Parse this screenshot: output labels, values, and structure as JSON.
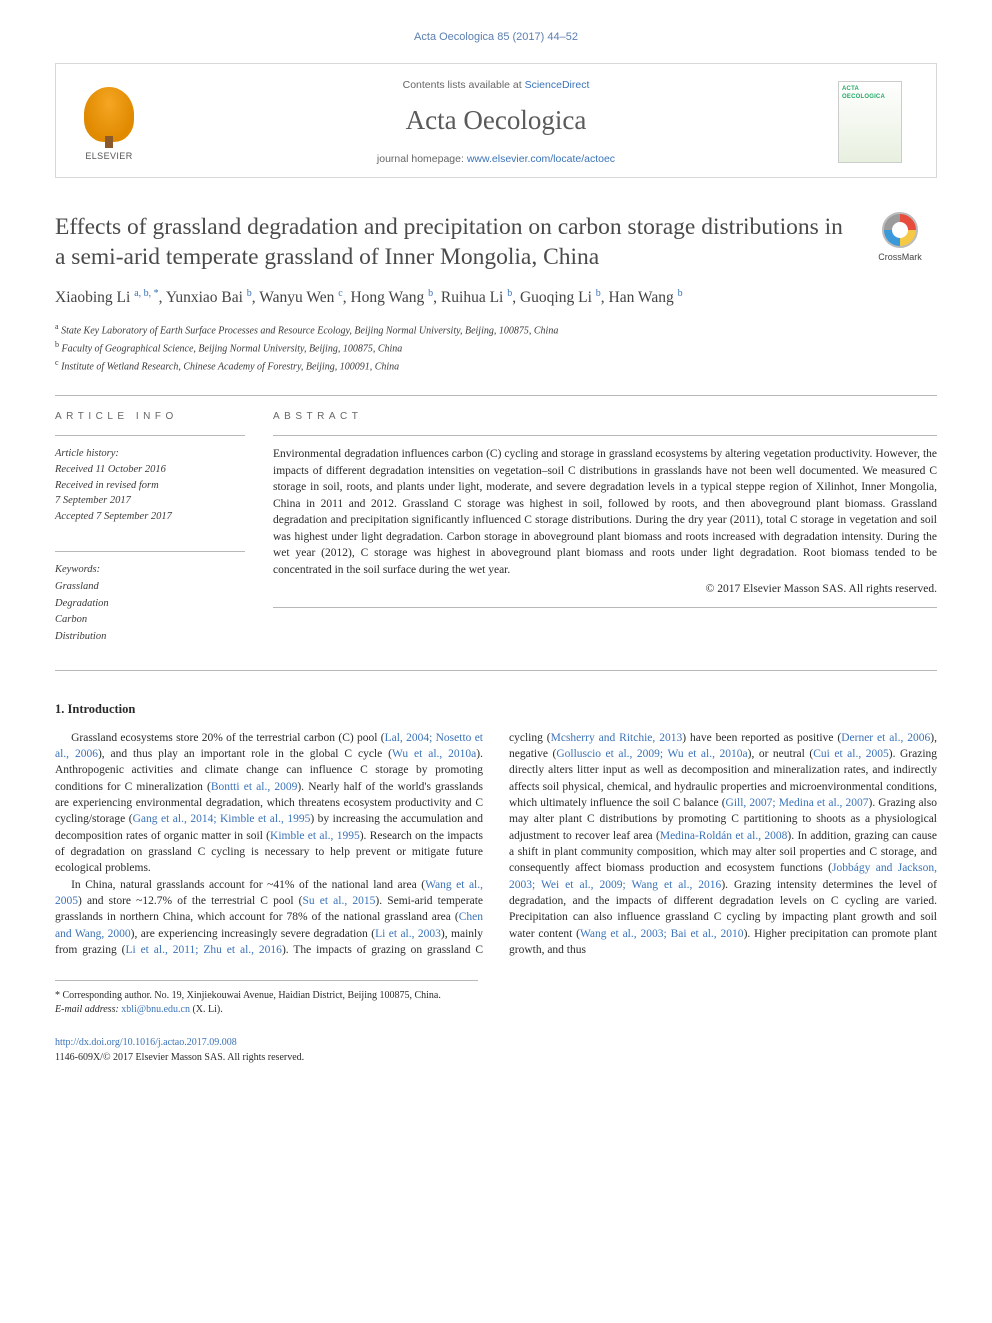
{
  "citation": "Acta Oecologica 85 (2017) 44–52",
  "header": {
    "contents_prefix": "Contents lists available at ",
    "contents_link": "ScienceDirect",
    "journal_name": "Acta Oecologica",
    "homepage_prefix": "journal homepage: ",
    "homepage_url": "www.elsevier.com/locate/actoec",
    "elsevier_brand": "ELSEVIER",
    "cover_text": "ACTA OECOLOGICA"
  },
  "crossmark_label": "CrossMark",
  "title": "Effects of grassland degradation and precipitation on carbon storage distributions in a semi-arid temperate grassland of Inner Mongolia, China",
  "authors_html": "Xiaobing Li <sup>a, b, *</sup>, Yunxiao Bai <sup>b</sup>, Wanyu Wen <sup>c</sup>, Hong Wang <sup>b</sup>, Ruihua Li <sup>b</sup>, Guoqing Li <sup>b</sup>, Han Wang <sup>b</sup>",
  "affiliations": [
    {
      "sup": "a",
      "text": "State Key Laboratory of Earth Surface Processes and Resource Ecology, Beijing Normal University, Beijing, 100875, China"
    },
    {
      "sup": "b",
      "text": "Faculty of Geographical Science, Beijing Normal University, Beijing, 100875, China"
    },
    {
      "sup": "c",
      "text": "Institute of Wetland Research, Chinese Academy of Forestry, Beijing, 100091, China"
    }
  ],
  "article_info": {
    "heading": "ARTICLE INFO",
    "history_label": "Article history:",
    "received": "Received 11 October 2016",
    "revised_label": "Received in revised form",
    "revised_date": "7 September 2017",
    "accepted": "Accepted 7 September 2017",
    "keywords_label": "Keywords:",
    "keywords": [
      "Grassland",
      "Degradation",
      "Carbon",
      "Distribution"
    ]
  },
  "abstract": {
    "heading": "ABSTRACT",
    "text": "Environmental degradation influences carbon (C) cycling and storage in grassland ecosystems by altering vegetation productivity. However, the impacts of different degradation intensities on vegetation–soil C distributions in grasslands have not been well documented. We measured C storage in soil, roots, and plants under light, moderate, and severe degradation levels in a typical steppe region of Xilinhot, Inner Mongolia, China in 2011 and 2012. Grassland C storage was highest in soil, followed by roots, and then aboveground plant biomass. Grassland degradation and precipitation significantly influenced C storage distributions. During the dry year (2011), total C storage in vegetation and soil was highest under light degradation. Carbon storage in aboveground plant biomass and roots increased with degradation intensity. During the wet year (2012), C storage was highest in aboveground plant biomass and roots under light degradation. Root biomass tended to be concentrated in the soil surface during the wet year.",
    "copyright": "© 2017 Elsevier Masson SAS. All rights reserved."
  },
  "intro_heading": "1.  Introduction",
  "intro_paragraphs": [
    "Grassland ecosystems store 20% of the terrestrial carbon (C) pool (<a>Lal, 2004; Nosetto et al., 2006</a>), and thus play an important role in the global C cycle (<a>Wu et al., 2010a</a>). Anthropogenic activities and climate change can influence C storage by promoting conditions for C mineralization (<a>Bontti et al., 2009</a>). Nearly half of the world's grasslands are experiencing environmental degradation, which threatens ecosystem productivity and C cycling/storage (<a>Gang et al., 2014; Kimble et al., 1995</a>) by increasing the accumulation and decomposition rates of organic matter in soil (<a>Kimble et al., 1995</a>). Research on the impacts of degradation on grassland C cycling is necessary to help prevent or mitigate future ecological problems.",
    "In China, natural grasslands account for ~41% of the national land area (<a>Wang et al., 2005</a>) and store ~12.7% of the terrestrial C pool (<a>Su et al., 2015</a>). Semi-arid temperate grasslands in northern China, which account for 78% of the national grassland area (<a>Chen and Wang, 2000</a>), are experiencing increasingly severe degradation (<a>Li et al., 2003</a>), mainly from grazing (<a>Li et al., 2011; Zhu et al., 2016</a>). The impacts of grazing on grassland C cycling (<a>Mcsherry and Ritchie, 2013</a>) have been reported as positive (<a>Derner et al., 2006</a>), negative (<a>Golluscio et al., 2009; Wu et al., 2010a</a>), or neutral (<a>Cui et al., 2005</a>). Grazing directly alters litter input as well as decomposition and mineralization rates, and indirectly affects soil physical, chemical, and hydraulic properties and microenvironmental conditions, which ultimately influence the soil C balance (<a>Gill, 2007; Medina et al., 2007</a>). Grazing also may alter plant C distributions by promoting C partitioning to shoots as a physiological adjustment to recover leaf area (<a>Medina-Roldán et al., 2008</a>). In addition, grazing can cause a shift in plant community composition, which may alter soil properties and C storage, and consequently affect biomass production and ecosystem functions (<a>Jobbágy and Jackson, 2003; Wei et al., 2009; Wang et al., 2016</a>). Grazing intensity determines the level of degradation, and the impacts of different degradation levels on C cycling are varied. Precipitation can also influence grassland C cycling by impacting plant growth and soil water content (<a>Wang et al., 2003; Bai et al., 2010</a>). Higher precipitation can promote plant growth, and thus"
  ],
  "footnotes": {
    "corresponding": "* Corresponding author. No. 19, Xinjiekouwai Avenue, Haidian District, Beijing 100875, China.",
    "email_label": "E-mail address: ",
    "email": "xbli@bnu.edu.cn",
    "email_suffix": " (X. Li)."
  },
  "footer": {
    "doi": "http://dx.doi.org/10.1016/j.actao.2017.09.008",
    "issn_line": "1146-609X/© 2017 Elsevier Masson SAS. All rights reserved."
  },
  "colors": {
    "link": "#3b73b8",
    "text": "#2a2a2a",
    "muted": "#666666",
    "rule": "#b8b8b8"
  }
}
